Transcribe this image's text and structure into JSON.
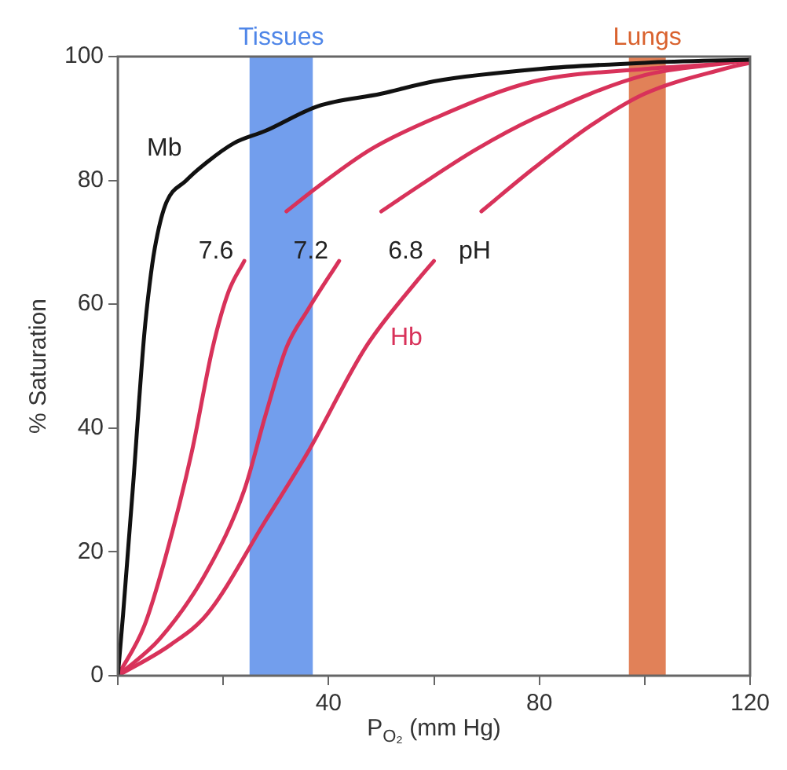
{
  "chart_data": {
    "type": "line",
    "xlabel": "P$_{O₂}$ (mm Hg)",
    "ylabel": "% Saturation",
    "xlim": [
      0,
      120
    ],
    "xticks": [
      {
        "value": 0,
        "label": null
      },
      {
        "value": 20,
        "label": null
      },
      40,
      {
        "value": 60,
        "label": null
      },
      80,
      {
        "value": 100,
        "label": null
      },
      120
    ],
    "ylim": [
      0,
      100
    ],
    "yticks": [
      0,
      20,
      40,
      60,
      80,
      100
    ],
    "grid": false,
    "legend": false,
    "marker": "none",
    "line_style": "solid",
    "series": [
      {
        "name": "Mb",
        "color": "#111111",
        "x": [
          0,
          1,
          2,
          3,
          4,
          5,
          6,
          7,
          9,
          13,
          17,
          22,
          28,
          38,
          50,
          60,
          80,
          100,
          120
        ],
        "values": [
          0,
          10,
          21,
          32,
          44,
          55,
          63,
          69,
          76,
          80,
          83,
          86,
          88,
          92,
          94,
          96,
          98,
          99,
          99.5
        ]
      },
      {
        "name": "7.6",
        "color": "#d8325a",
        "x": [
          0,
          5,
          9,
          14,
          18,
          21,
          24,
          28,
          32,
          38,
          48,
          60,
          79,
          100,
          116,
          120
        ],
        "values": [
          0,
          8,
          19,
          36,
          53,
          62,
          67,
          null,
          75,
          79,
          85,
          90,
          96,
          98,
          99,
          99.5
        ]
      },
      {
        "name": "7.2",
        "color": "#d8325a",
        "x": [
          0,
          8,
          17,
          24,
          28,
          32,
          36,
          42,
          46,
          50,
          57,
          68,
          79,
          100,
          116,
          120
        ],
        "values": [
          0,
          6,
          17,
          30,
          42,
          53,
          59,
          67,
          null,
          75,
          79,
          85,
          90,
          97,
          99,
          99.5
        ]
      },
      {
        "name": "6.8",
        "color": "#d8325a",
        "x": [
          0,
          10,
          17,
          28,
          36,
          47,
          57,
          60,
          64,
          69,
          79,
          90,
          100,
          115,
          120
        ],
        "values": [
          0,
          5,
          10,
          25,
          36,
          53,
          64,
          67,
          null,
          75,
          82,
          89,
          94,
          98,
          99
        ]
      }
    ],
    "bands": [
      {
        "axis": "x",
        "from": 25,
        "to": 37,
        "label": "Tissues",
        "color": "#4f86e8"
      },
      {
        "axis": "x",
        "from": 97,
        "to": 104,
        "label": "Lungs",
        "color": "#d9622e"
      }
    ],
    "annotations": [
      "pH",
      "Hb"
    ]
  }
}
